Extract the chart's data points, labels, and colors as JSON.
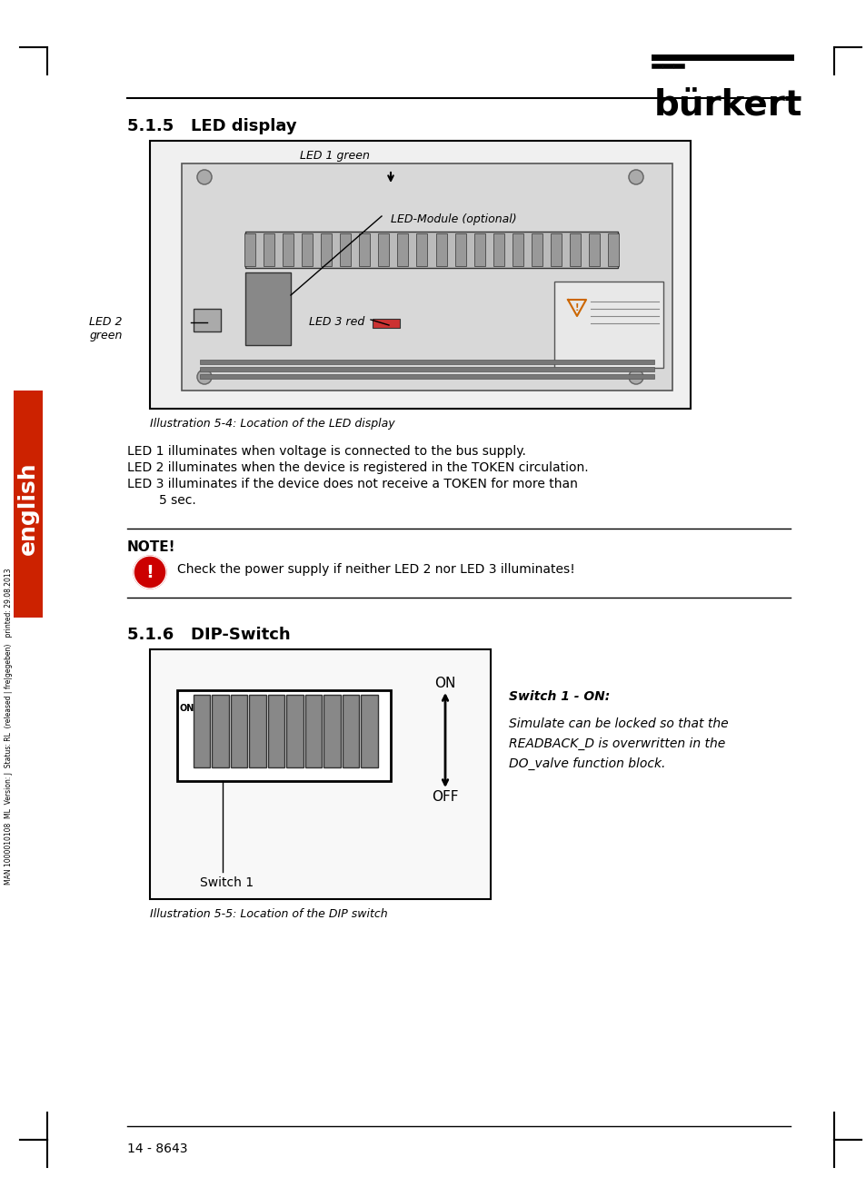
{
  "page_bg": "#ffffff",
  "title_text": "bürkert",
  "section1_title": "5.1.5   LED display",
  "section2_title": "5.1.6   DIP-Switch",
  "fig_caption1": "Illustration 5-4: Location of the LED display",
  "fig_caption2": "Illustration 5-5: Location of the DIP switch",
  "led_label1": "LED 1 green",
  "led_label2": "LED 2\ngreen",
  "led_label3": "LED 3 red",
  "led_label4": "LED-Module (optional)",
  "body_text1": "LED 1 illuminates when voltage is connected to the bus supply.\nLED 2 illuminates when the device is registered in the TOKEN circulation.\nLED 3 illuminates if the device does not receive a TOKEN for more than\n        5 sec.",
  "note_title": "NOTE!",
  "note_text": "Check the power supply if neither LED 2 nor LED 3 illuminates!",
  "switch_label_on": "ON",
  "switch_label_off": "OFF",
  "switch_label_switch": "Switch 1",
  "switch_note_title": "Switch 1 - ON:",
  "switch_note_text": "Simulate can be locked so that the\nREADBACK_D is overwritten in the\nDO_valve function block.",
  "sidebar_text": "english",
  "sidebar_subtext": "MAN 1000010108  ML  Version: J  Status: RL  (released | fre|gegeben)   printed: 29.08.2013",
  "footer_text": "14 - 8643",
  "text_color": "#000000",
  "gray_color": "#888888",
  "border_color": "#000000",
  "note_circle_color": "#cc0000"
}
